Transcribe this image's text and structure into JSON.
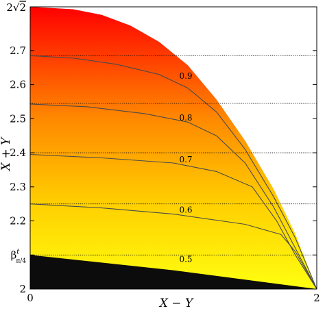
{
  "chart_data": {
    "type": "heatmap",
    "title": "",
    "xlabel": "X − Y",
    "ylabel": "X + Y",
    "xlim": [
      0,
      2
    ],
    "ylim": [
      2,
      2.8284
    ],
    "x_ticks": [
      {
        "value": 0,
        "label": "0"
      },
      {
        "value": 2,
        "label": "2"
      }
    ],
    "y_ticks": [
      {
        "value": 2.0,
        "label": "2"
      },
      {
        "value": 2.1,
        "label": "β^t_{π/4}"
      },
      {
        "value": 2.2,
        "label": "2.2"
      },
      {
        "value": 2.3,
        "label": "2.3"
      },
      {
        "value": 2.4,
        "label": "2.4"
      },
      {
        "value": 2.5,
        "label": "2.5"
      },
      {
        "value": 2.6,
        "label": "2.6"
      },
      {
        "value": 2.7,
        "label": "2.7"
      },
      {
        "value": 2.8284,
        "label": "2√2"
      }
    ],
    "beta_label": {
      "main": "β",
      "sup": "t",
      "sub": "π/4"
    },
    "top_label": {
      "prefix": "2",
      "radical": "√",
      "radicand": "2"
    },
    "color_scale": {
      "low": "#ffff10",
      "mid": "#ff9a00",
      "high": "#ff0000",
      "excluded": "#0c0c0c"
    },
    "boundary_curve": [
      [
        0,
        2.8284
      ],
      [
        0.3,
        2.8214
      ],
      [
        0.5,
        2.8046
      ],
      [
        0.7,
        2.7734
      ],
      [
        0.9,
        2.7257
      ],
      [
        1.1,
        2.6568
      ],
      [
        1.3,
        2.5565
      ],
      [
        1.5,
        2.4354
      ],
      [
        1.7,
        2.2926
      ],
      [
        1.85,
        2.1618
      ],
      [
        2.0,
        2.0
      ]
    ],
    "excluded_region_top": [
      [
        0,
        2.1
      ],
      [
        1.0,
        2.055
      ],
      [
        2.0,
        2.0
      ]
    ],
    "reference_lines": [
      2.1,
      2.25,
      2.4,
      2.545,
      2.685
    ],
    "contours": [
      {
        "level": "0.5",
        "label_at": [
          1.0,
          2.087
        ],
        "points": []
      },
      {
        "level": "0.6",
        "label_at": [
          1.0,
          2.232
        ],
        "points": [
          [
            0,
            2.25
          ],
          [
            0.5,
            2.238
          ],
          [
            1.0,
            2.22
          ],
          [
            1.5,
            2.19
          ],
          [
            1.75,
            2.16
          ],
          [
            1.85,
            2.11
          ],
          [
            2.0,
            2.0
          ]
        ]
      },
      {
        "level": "0.7",
        "label_at": [
          1.0,
          2.38
        ],
        "points": [
          [
            0,
            2.395
          ],
          [
            0.5,
            2.385
          ],
          [
            1.0,
            2.37
          ],
          [
            1.3,
            2.345
          ],
          [
            1.55,
            2.3
          ],
          [
            1.72,
            2.2
          ],
          [
            1.85,
            2.1
          ],
          [
            2.0,
            2.0
          ]
        ]
      },
      {
        "level": "0.8",
        "label_at": [
          1.0,
          2.503
        ],
        "points": [
          [
            0,
            2.543
          ],
          [
            0.4,
            2.535
          ],
          [
            0.8,
            2.515
          ],
          [
            1.1,
            2.49
          ],
          [
            1.3,
            2.45
          ],
          [
            1.5,
            2.37
          ],
          [
            1.7,
            2.24
          ],
          [
            1.85,
            2.12
          ],
          [
            2.0,
            2.0
          ]
        ]
      },
      {
        "level": "0.9",
        "label_at": [
          1.0,
          2.625
        ],
        "points": [
          [
            0,
            2.685
          ],
          [
            0.3,
            2.678
          ],
          [
            0.6,
            2.66
          ],
          [
            0.9,
            2.63
          ],
          [
            1.1,
            2.59
          ],
          [
            1.3,
            2.52
          ],
          [
            1.5,
            2.41
          ],
          [
            1.7,
            2.27
          ],
          [
            1.85,
            2.15
          ],
          [
            2.0,
            2.0
          ]
        ]
      }
    ]
  }
}
